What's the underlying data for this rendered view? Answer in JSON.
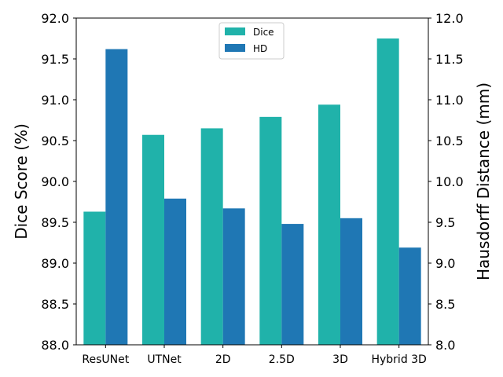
{
  "chart_data": {
    "type": "bar",
    "categories": [
      "ResUNet",
      "UTNet",
      "2D",
      "2.5D",
      "3D",
      "Hybrid 3D"
    ],
    "series": [
      {
        "name": "Dice",
        "axis": "left",
        "color": "#20b2aa",
        "values": [
          89.63,
          90.57,
          90.65,
          90.79,
          90.94,
          91.75
        ]
      },
      {
        "name": "HD",
        "axis": "right",
        "color": "#1f77b4",
        "values": [
          11.62,
          9.79,
          9.67,
          9.48,
          9.55,
          9.19
        ]
      }
    ],
    "ylabel_left": "Dice Score (%)",
    "ylabel_right": "Hausdorff Distance (mm)",
    "ylim_left": [
      88.0,
      92.0
    ],
    "ylim_right": [
      8.0,
      12.0
    ],
    "yticks_left": [
      "88.0",
      "88.5",
      "89.0",
      "89.5",
      "90.0",
      "90.5",
      "91.0",
      "91.5",
      "92.0"
    ],
    "yticks_right": [
      "8.0",
      "8.5",
      "9.0",
      "9.5",
      "10.0",
      "10.5",
      "11.0",
      "11.5",
      "12.0"
    ],
    "legend": {
      "position": "top-center",
      "entries": [
        "Dice",
        "HD"
      ]
    },
    "grid": false
  }
}
